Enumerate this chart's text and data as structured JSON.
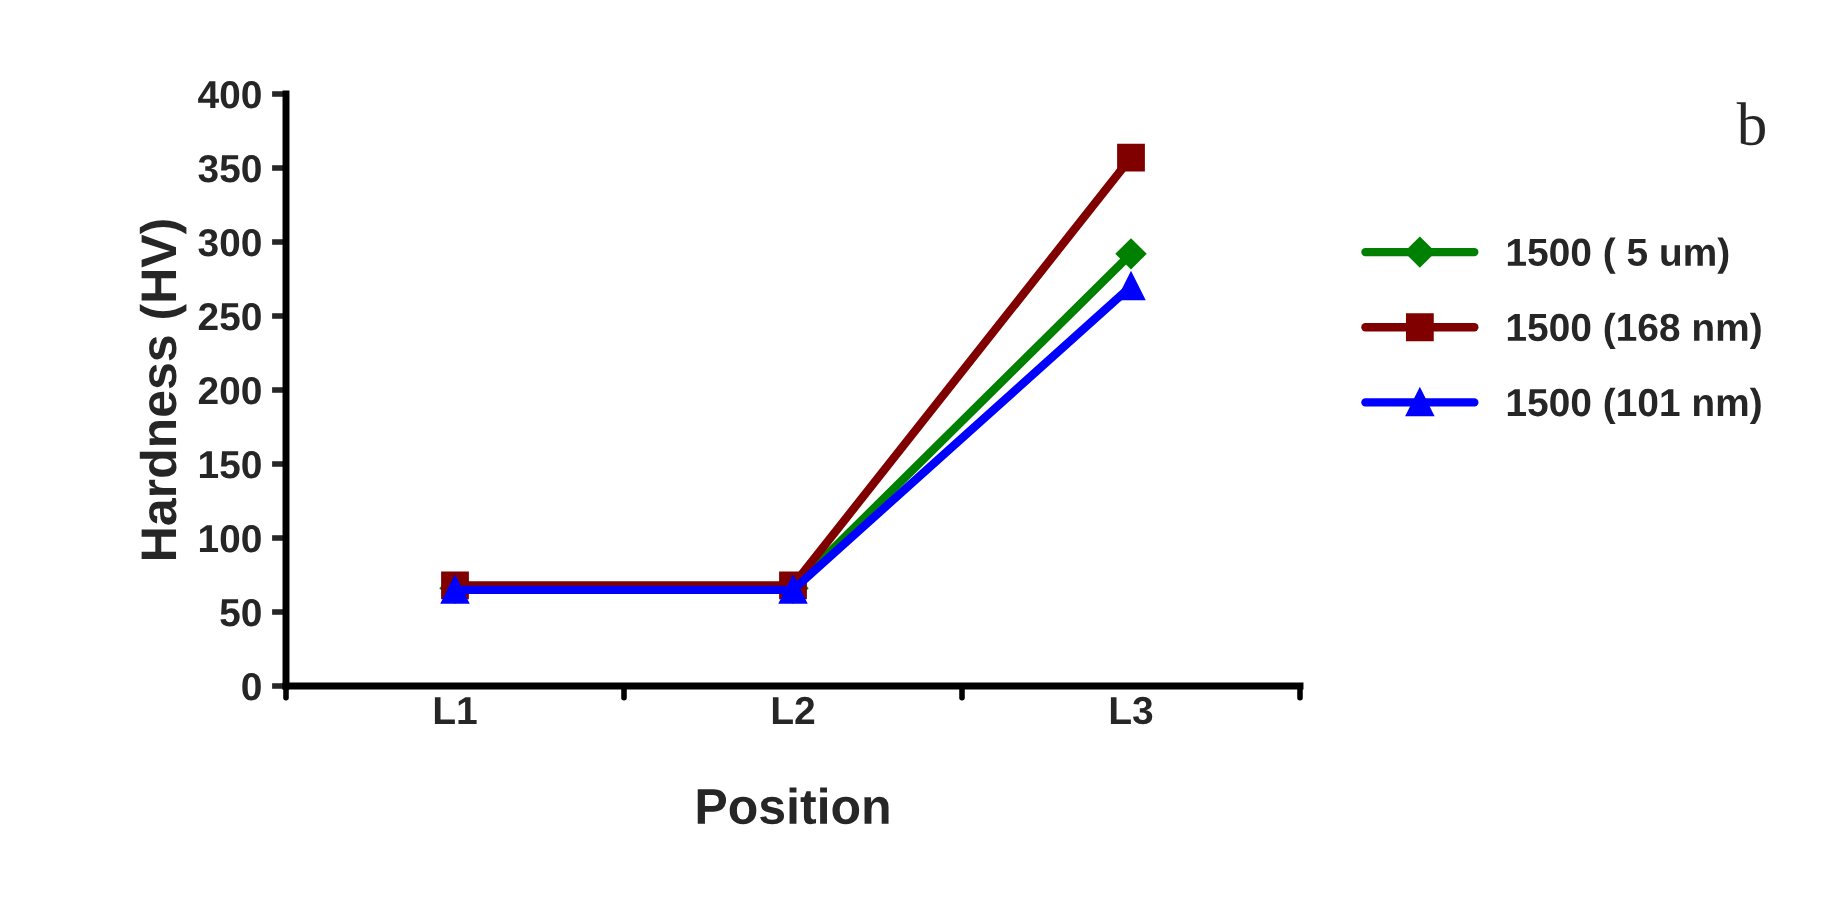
{
  "chart_data": {
    "type": "line",
    "xlabel": "Position",
    "ylabel": "Hardness (HV)",
    "categories": [
      "L1",
      "L2",
      "L3"
    ],
    "series": [
      {
        "name": "1500 ( 5 um)",
        "color": "#008000",
        "marker": "diamond",
        "values": [
          66,
          66,
          292
        ]
      },
      {
        "name": "1500 (168 nm)",
        "color": "#800000",
        "marker": "square",
        "values": [
          68,
          68,
          357
        ]
      },
      {
        "name": "1500 (101 nm)",
        "color": "#0000ff",
        "marker": "triangle",
        "values": [
          65,
          65,
          270
        ]
      }
    ],
    "ylim": [
      0,
      400
    ],
    "yticks": [
      0,
      50,
      100,
      150,
      200,
      250,
      300,
      350,
      400
    ],
    "annotations": [
      "b"
    ],
    "grid": false,
    "legend": "right",
    "line_style": "solid"
  }
}
